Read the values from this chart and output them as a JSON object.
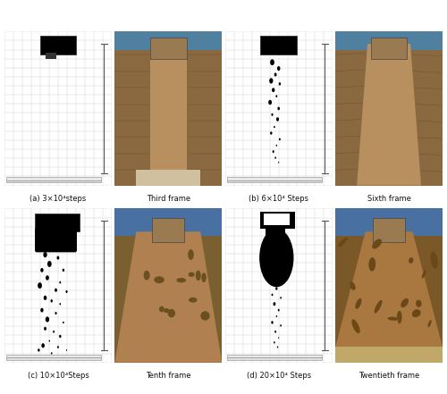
{
  "captions": [
    "(a) 3×10⁴steps",
    "Third frame",
    "(b) 6×10⁴ Steps",
    "Sixth frame",
    "(c) 10×10⁴Steps",
    "Tenth frame",
    "(d) 20×10⁴ Steps",
    "Twentieth frame"
  ],
  "bg_color": "#ffffff",
  "grid_color": "#cccccc",
  "caption_fontsize": 6.0,
  "caption_color": "#111111",
  "panel_border_color": "#888888",
  "scale_bar_color": "#555555"
}
